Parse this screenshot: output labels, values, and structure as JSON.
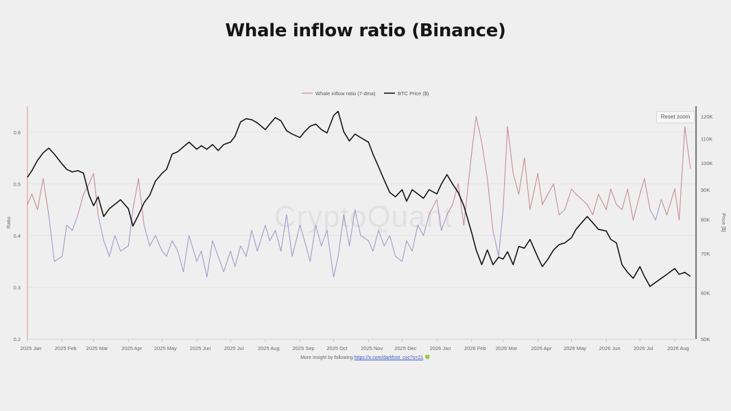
{
  "page": {
    "title": "Whale inflow ratio (Binance)",
    "reset_zoom_label": "Reset zoom",
    "watermark": "CryptoQuant",
    "footer_prefix": "More insight by following ",
    "footer_link": "https://x.com/darkfost_coc?s=21",
    "footer_suffix": " 🍀"
  },
  "chart_data": {
    "type": "line",
    "legend": {
      "placement": "top-center",
      "entries": [
        "Whale inflow ratio (7-dma)",
        "BTC Price ($)"
      ]
    },
    "x_ticks": [
      "2025 Jan",
      "2025 Feb",
      "2025 Mar",
      "2025 Apr",
      "2025 May",
      "2025 Jun",
      "2025 Jul",
      "2025 Aug",
      "2025 Sep",
      "2025 Oct",
      "2025 Nov",
      "2025 Dec",
      "2026 Jan",
      "2026 Feb",
      "2026 Mar",
      "2026 Apr",
      "2026 May",
      "2026 Jun",
      "2026 Jul",
      "2026 Aug"
    ],
    "left_axis": {
      "label": "Ratio",
      "ylim": [
        0.2,
        0.65
      ],
      "ticks": [
        "0.2",
        "0.3",
        "0.4",
        "0.5",
        "0.6"
      ]
    },
    "right_axis": {
      "label": "Price [$]",
      "scale": "log",
      "ylim": [
        50000,
        125000
      ],
      "ticks": [
        "50K",
        "60K",
        "70K",
        "80K",
        "90K",
        "100K",
        "110K",
        "120K"
      ]
    },
    "grid": true,
    "series": [
      {
        "name": "Whale inflow ratio (7-dma)",
        "axis": "left",
        "color_high": "#c98a96",
        "color_low": "#a597c9",
        "x": [
          "2025-01-01",
          "2025-01-05",
          "2025-01-10",
          "2025-01-15",
          "2025-01-20",
          "2025-01-25",
          "2025-02-01",
          "2025-02-05",
          "2025-02-10",
          "2025-02-15",
          "2025-02-20",
          "2025-02-25",
          "2025-03-01",
          "2025-03-05",
          "2025-03-10",
          "2025-03-15",
          "2025-03-20",
          "2025-03-25",
          "2025-04-01",
          "2025-04-05",
          "2025-04-10",
          "2025-04-15",
          "2025-04-20",
          "2025-04-25",
          "2025-05-01",
          "2025-05-05",
          "2025-05-10",
          "2025-05-15",
          "2025-05-20",
          "2025-05-25",
          "2025-06-01",
          "2025-06-05",
          "2025-06-10",
          "2025-06-15",
          "2025-06-20",
          "2025-06-25",
          "2025-07-01",
          "2025-07-05",
          "2025-07-10",
          "2025-07-15",
          "2025-07-20",
          "2025-07-25",
          "2025-08-01",
          "2025-08-05",
          "2025-08-10",
          "2025-08-15",
          "2025-08-20",
          "2025-08-25",
          "2025-09-01",
          "2025-09-05",
          "2025-09-10",
          "2025-09-15",
          "2025-09-20",
          "2025-09-25",
          "2025-10-01",
          "2025-10-05",
          "2025-10-10",
          "2025-10-15",
          "2025-10-20",
          "2025-10-25",
          "2025-11-01",
          "2025-11-05",
          "2025-11-10",
          "2025-11-15",
          "2025-11-20",
          "2025-11-25",
          "2025-12-01",
          "2025-12-05",
          "2025-12-10",
          "2025-12-15",
          "2025-12-20",
          "2025-12-25",
          "2026-01-01",
          "2026-01-05",
          "2026-01-10",
          "2026-01-15",
          "2026-01-20",
          "2026-01-25",
          "2026-02-01",
          "2026-02-05",
          "2026-02-10",
          "2026-02-15",
          "2026-02-20",
          "2026-02-25",
          "2026-03-01",
          "2026-03-05",
          "2026-03-10",
          "2026-03-15",
          "2026-03-20",
          "2026-03-25",
          "2026-04-01",
          "2026-04-05",
          "2026-04-10",
          "2026-04-15",
          "2026-04-20",
          "2026-04-25",
          "2026-05-01",
          "2026-05-05",
          "2026-05-10",
          "2026-05-15",
          "2026-05-20",
          "2026-05-25",
          "2026-06-01",
          "2026-06-05",
          "2026-06-10",
          "2026-06-15",
          "2026-06-20",
          "2026-06-25",
          "2026-07-01",
          "2026-07-05",
          "2026-07-10",
          "2026-07-15",
          "2026-07-20",
          "2026-07-25",
          "2026-08-01",
          "2026-08-05",
          "2026-08-10",
          "2026-08-15"
        ],
        "values": [
          0.46,
          0.48,
          0.45,
          0.51,
          0.44,
          0.35,
          0.36,
          0.42,
          0.41,
          0.44,
          0.48,
          0.5,
          0.52,
          0.44,
          0.39,
          0.36,
          0.4,
          0.37,
          0.38,
          0.45,
          0.51,
          0.42,
          0.38,
          0.4,
          0.37,
          0.36,
          0.39,
          0.37,
          0.33,
          0.4,
          0.35,
          0.37,
          0.32,
          0.39,
          0.36,
          0.33,
          0.37,
          0.34,
          0.38,
          0.36,
          0.41,
          0.37,
          0.42,
          0.39,
          0.41,
          0.37,
          0.44,
          0.36,
          0.42,
          0.39,
          0.35,
          0.42,
          0.38,
          0.41,
          0.32,
          0.36,
          0.44,
          0.38,
          0.45,
          0.4,
          0.39,
          0.37,
          0.41,
          0.38,
          0.4,
          0.36,
          0.35,
          0.39,
          0.37,
          0.42,
          0.4,
          0.44,
          0.47,
          0.41,
          0.44,
          0.46,
          0.5,
          0.42,
          0.56,
          0.63,
          0.58,
          0.51,
          0.41,
          0.36,
          0.45,
          0.61,
          0.52,
          0.48,
          0.55,
          0.45,
          0.52,
          0.46,
          0.48,
          0.5,
          0.44,
          0.45,
          0.49,
          0.48,
          0.47,
          0.46,
          0.44,
          0.48,
          0.45,
          0.49,
          0.46,
          0.45,
          0.49,
          0.43,
          0.48,
          0.51,
          0.45,
          0.43,
          0.47,
          0.44,
          0.49,
          0.43,
          0.61,
          0.53
        ]
      },
      {
        "name": "BTC Price ($)",
        "axis": "right",
        "color": "#111111",
        "x": [
          "2025-01-01",
          "2025-01-05",
          "2025-01-10",
          "2025-01-15",
          "2025-01-20",
          "2025-01-25",
          "2025-02-01",
          "2025-02-05",
          "2025-02-10",
          "2025-02-15",
          "2025-02-20",
          "2025-02-25",
          "2025-03-01",
          "2025-03-05",
          "2025-03-10",
          "2025-03-15",
          "2025-03-20",
          "2025-03-25",
          "2025-04-01",
          "2025-04-05",
          "2025-04-10",
          "2025-04-15",
          "2025-04-20",
          "2025-04-25",
          "2025-05-01",
          "2025-05-05",
          "2025-05-10",
          "2025-05-15",
          "2025-05-20",
          "2025-05-25",
          "2025-06-01",
          "2025-06-05",
          "2025-06-10",
          "2025-06-15",
          "2025-06-20",
          "2025-06-25",
          "2025-07-01",
          "2025-07-05",
          "2025-07-10",
          "2025-07-15",
          "2025-07-20",
          "2025-07-25",
          "2025-08-01",
          "2025-08-05",
          "2025-08-10",
          "2025-08-15",
          "2025-08-20",
          "2025-08-25",
          "2025-09-01",
          "2025-09-05",
          "2025-09-10",
          "2025-09-15",
          "2025-09-20",
          "2025-09-25",
          "2025-10-01",
          "2025-10-05",
          "2025-10-10",
          "2025-10-15",
          "2025-10-20",
          "2025-10-25",
          "2025-11-01",
          "2025-11-05",
          "2025-11-10",
          "2025-11-15",
          "2025-11-20",
          "2025-11-25",
          "2025-12-01",
          "2025-12-05",
          "2025-12-10",
          "2025-12-15",
          "2025-12-20",
          "2025-12-25",
          "2026-01-01",
          "2026-01-05",
          "2026-01-10",
          "2026-01-15",
          "2026-01-20",
          "2026-01-25",
          "2026-02-01",
          "2026-02-05",
          "2026-02-10",
          "2026-02-15",
          "2026-02-20",
          "2026-02-25",
          "2026-03-01",
          "2026-03-05",
          "2026-03-10",
          "2026-03-15",
          "2026-03-20",
          "2026-03-25",
          "2026-04-01",
          "2026-04-05",
          "2026-04-10",
          "2026-04-15",
          "2026-04-20",
          "2026-04-25",
          "2026-05-01",
          "2026-05-05",
          "2026-05-10",
          "2026-05-15",
          "2026-05-20",
          "2026-05-25",
          "2026-06-01",
          "2026-06-05",
          "2026-06-10",
          "2026-06-15",
          "2026-06-20",
          "2026-06-25",
          "2026-07-01",
          "2026-07-05",
          "2026-07-10",
          "2026-07-15",
          "2026-07-20",
          "2026-07-25",
          "2026-08-01",
          "2026-08-05",
          "2026-08-10",
          "2026-08-15"
        ],
        "values": [
          94500,
          97000,
          101000,
          104000,
          106000,
          103500,
          99500,
          97500,
          96500,
          97000,
          96000,
          88000,
          84500,
          87500,
          81000,
          83500,
          85000,
          86500,
          83500,
          78000,
          81500,
          85500,
          88000,
          93000,
          96000,
          97500,
          103500,
          104500,
          106500,
          108500,
          105500,
          107000,
          105500,
          107500,
          105000,
          107500,
          108500,
          111000,
          117500,
          119000,
          118500,
          117000,
          114000,
          116500,
          119500,
          118000,
          113500,
          112000,
          110500,
          113000,
          115500,
          116500,
          114000,
          112500,
          120500,
          122500,
          113000,
          109000,
          112000,
          110500,
          108500,
          103500,
          98500,
          93500,
          89000,
          87500,
          90000,
          86000,
          90000,
          88500,
          87000,
          90000,
          88500,
          92000,
          95500,
          92000,
          89000,
          84500,
          76000,
          71000,
          67000,
          71000,
          67000,
          69000,
          68500,
          70500,
          67000,
          72000,
          71500,
          74000,
          69000,
          66500,
          68500,
          71000,
          72500,
          73000,
          74500,
          77000,
          79000,
          81000,
          79000,
          77000,
          76500,
          74000,
          73000,
          67000,
          65000,
          63500,
          66500,
          64000,
          61500,
          62500,
          63500,
          64500,
          66000,
          64500,
          65000,
          64000
        ]
      }
    ]
  }
}
